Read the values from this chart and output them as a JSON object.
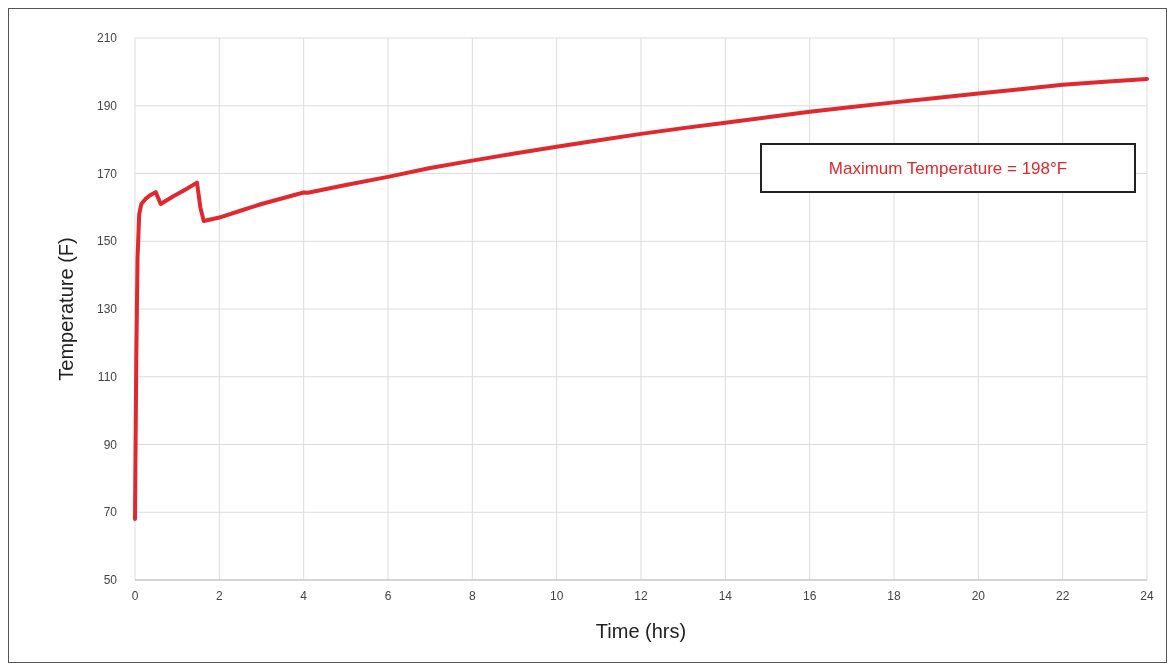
{
  "chart_data": {
    "type": "line",
    "xlabel": "Time (hrs)",
    "ylabel": "Temperature (F)",
    "annotations": [
      "Maximum Temperature = 198°F"
    ],
    "series": [
      {
        "color": "#e0282e",
        "x": [
          0,
          0.03,
          0.06,
          0.1,
          0.15,
          0.25,
          0.35,
          0.49,
          0.61,
          0.9,
          1.2,
          1.47,
          1.55,
          1.63,
          2,
          2.5,
          3,
          3.5,
          4,
          4.1,
          5,
          6,
          7,
          8,
          9,
          10,
          11,
          12,
          13,
          14,
          15,
          16,
          17,
          18,
          19,
          20,
          21,
          22,
          23,
          24
        ],
        "values": [
          68,
          115,
          145,
          158,
          161,
          162.5,
          163.5,
          164.5,
          161,
          163.2,
          165.3,
          167.3,
          160,
          156,
          157,
          159,
          161,
          162.7,
          164.4,
          164.3,
          166.6,
          169,
          171.6,
          173.8,
          175.9,
          177.9,
          179.8,
          181.7,
          183.4,
          185,
          186.6,
          188.2,
          189.6,
          191,
          192.3,
          193.6,
          194.9,
          196.2,
          197.1,
          197.9
        ]
      }
    ],
    "xlim": [
      0,
      24
    ],
    "xticks": [
      0,
      2,
      4,
      6,
      8,
      10,
      12,
      14,
      16,
      18,
      20,
      22,
      24
    ],
    "ylim": [
      50,
      210
    ],
    "yticks": [
      50,
      70,
      90,
      110,
      130,
      150,
      170,
      190,
      210
    ],
    "grid": true,
    "marker": "none",
    "line_style": "solid"
  }
}
